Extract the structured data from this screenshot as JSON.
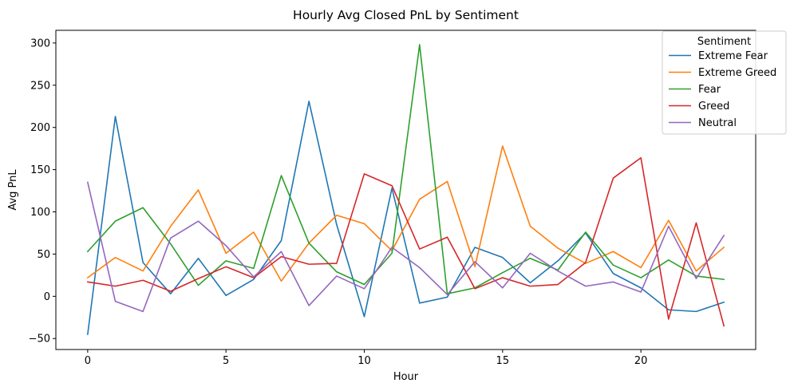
{
  "chart_data": {
    "type": "line",
    "title": "Hourly Avg Closed PnL by Sentiment",
    "xlabel": "Hour",
    "ylabel": "Avg PnL",
    "x": [
      0,
      1,
      2,
      3,
      4,
      5,
      6,
      7,
      8,
      9,
      10,
      11,
      12,
      13,
      14,
      15,
      16,
      17,
      18,
      19,
      20,
      21,
      22,
      23
    ],
    "xticks": [
      0,
      5,
      10,
      15,
      20
    ],
    "xlim": [
      -1.15,
      24.15
    ],
    "yticks": [
      -50,
      0,
      50,
      100,
      150,
      200,
      250,
      300
    ],
    "ylim": [
      -63,
      315
    ],
    "grid": false,
    "legend": {
      "title": "Sentiment",
      "placement": "top-right"
    },
    "series": [
      {
        "name": "Extreme Fear",
        "color": "#1f77b4",
        "values": [
          -45,
          213,
          40,
          3,
          45,
          1,
          20,
          66,
          231,
          85,
          -24,
          128,
          -8,
          -1,
          58,
          46,
          16,
          42,
          75,
          27,
          10,
          -16,
          -18,
          -7
        ]
      },
      {
        "name": "Extreme Greed",
        "color": "#ff7f0e",
        "values": [
          22,
          46,
          30,
          83,
          126,
          51,
          76,
          18,
          63,
          96,
          86,
          54,
          115,
          136,
          35,
          178,
          83,
          57,
          39,
          53,
          34,
          90,
          30,
          58
        ]
      },
      {
        "name": "Fear",
        "color": "#2ca02c",
        "values": [
          53,
          89,
          105,
          62,
          13,
          42,
          33,
          143,
          63,
          29,
          14,
          51,
          298,
          3,
          10,
          28,
          45,
          31,
          76,
          37,
          22,
          43,
          24,
          20
        ]
      },
      {
        "name": "Greed",
        "color": "#d62728",
        "values": [
          17,
          12,
          19,
          6,
          21,
          35,
          22,
          47,
          38,
          39,
          145,
          131,
          56,
          70,
          9,
          22,
          12,
          14,
          40,
          140,
          164,
          -27,
          87,
          -35
        ]
      },
      {
        "name": "Neutral",
        "color": "#9467bd",
        "values": [
          135,
          -6,
          -18,
          69,
          89,
          60,
          23,
          53,
          -11,
          24,
          9,
          58,
          34,
          2,
          41,
          10,
          51,
          30,
          12,
          17,
          5,
          83,
          21,
          72
        ]
      }
    ]
  }
}
